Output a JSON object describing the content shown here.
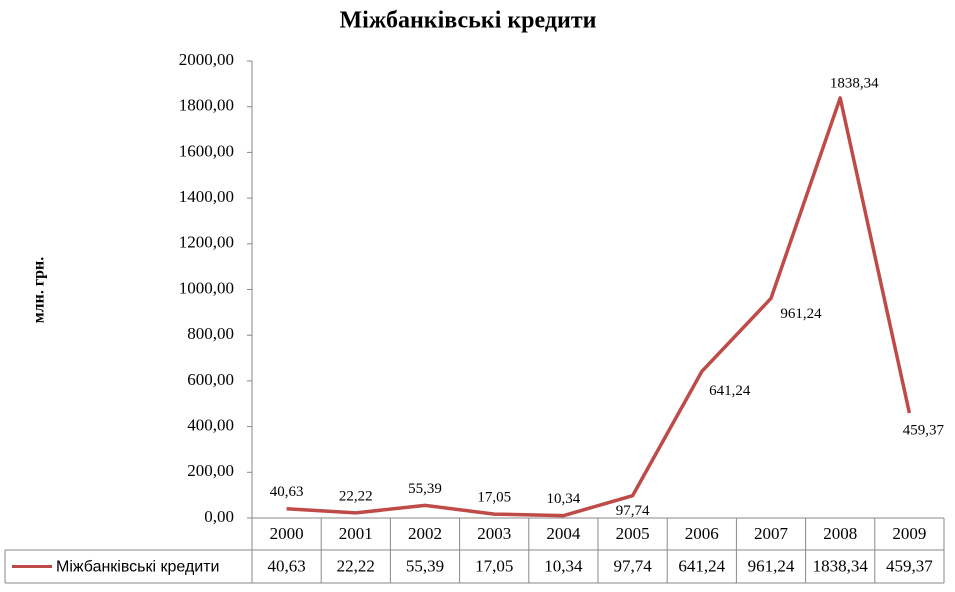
{
  "chart_data": {
    "type": "line",
    "title": "Міжбанківські кредити",
    "y_label": "млн. грн.",
    "categories": [
      "2000",
      "2001",
      "2002",
      "2003",
      "2004",
      "2005",
      "2006",
      "2007",
      "2008",
      "2009"
    ],
    "series": [
      {
        "name": "Міжбанківські кредити",
        "color": "#be4b48",
        "values": [
          40.63,
          22.22,
          55.39,
          17.05,
          10.34,
          97.74,
          641.24,
          961.24,
          1838.34,
          459.37
        ],
        "value_labels": [
          "40,63",
          "22,22",
          "55,39",
          "17,05",
          "10,34",
          "97,74",
          "641,24",
          "961,24",
          "1838,34",
          "459,37"
        ]
      }
    ],
    "ylim": [
      0,
      2000
    ],
    "yticks": [
      {
        "value": 0,
        "label": "0,00"
      },
      {
        "value": 200,
        "label": "200,00"
      },
      {
        "value": 400,
        "label": "400,00"
      },
      {
        "value": 600,
        "label": "600,00"
      },
      {
        "value": 800,
        "label": "800,00"
      },
      {
        "value": 1000,
        "label": "1000,00"
      },
      {
        "value": 1200,
        "label": "1200,00"
      },
      {
        "value": 1400,
        "label": "1400,00"
      },
      {
        "value": 1600,
        "label": "1600,00"
      },
      {
        "value": 1800,
        "label": "1800,00"
      },
      {
        "value": 2000,
        "label": "2000,00"
      }
    ],
    "grid": false,
    "data_table": true
  }
}
